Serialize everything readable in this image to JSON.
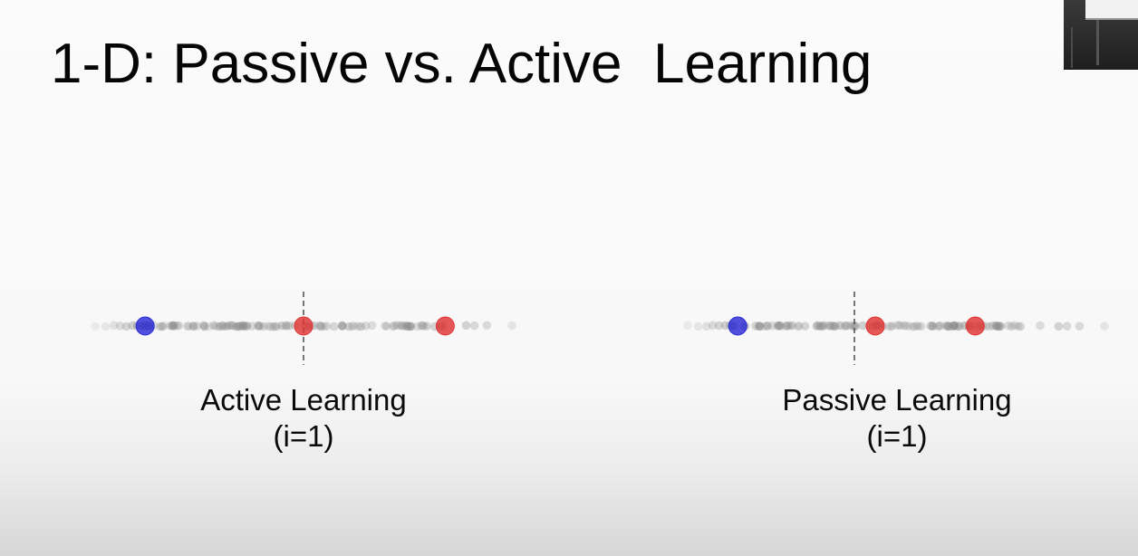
{
  "slide": {
    "title": "1-D: Passive vs. Active  Learning"
  },
  "diagrams": [
    {
      "id": "active",
      "label": "Active Learning",
      "sublabel": "(i=1)",
      "threshold": 0.5,
      "labeled_points": [
        {
          "x": 0.12,
          "class": "negative"
        },
        {
          "x": 0.5,
          "class": "positive"
        },
        {
          "x": 0.84,
          "class": "positive"
        }
      ]
    },
    {
      "id": "passive",
      "label": "Passive Learning",
      "sublabel": "(i=1)",
      "threshold": 0.4,
      "labeled_points": [
        {
          "x": 0.12,
          "class": "negative"
        },
        {
          "x": 0.45,
          "class": "positive"
        },
        {
          "x": 0.69,
          "class": "positive"
        }
      ]
    }
  ],
  "colors": {
    "negative": "#2b2bd6",
    "positive": "#e03434",
    "unlabeled": "#8a8a8a",
    "threshold": "#555555"
  }
}
